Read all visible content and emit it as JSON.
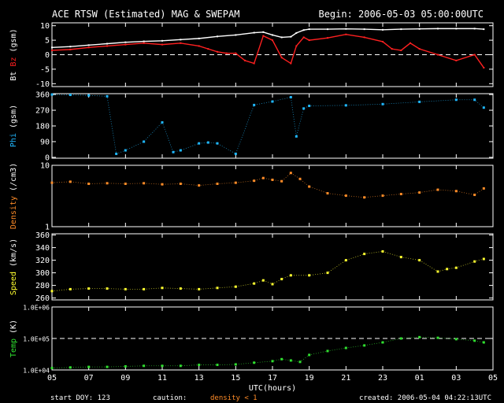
{
  "header": {
    "title": "ACE RTSW (Estimated) MAG & SWEPAM",
    "begin": "Begin: 2006-05-03 05:00:00UTC"
  },
  "footer": {
    "start_doy": "start DOY: 123",
    "caution": "caution:",
    "density_note": "density < 1",
    "created": "created: 2006-05-04 04:22:13UTC"
  },
  "colors": {
    "bt": "#ffffff",
    "bz": "#ff2020",
    "phi": "#20b8ff",
    "density": "#ff8c28",
    "speed": "#ffff30",
    "temp": "#30e030",
    "frame": "#ffffff",
    "bg": "#000000"
  },
  "chart_data": [
    {
      "type": "line",
      "panel": "mag",
      "ylabel_parts": [
        [
          "Bt",
          "#ffffff"
        ],
        [
          " ",
          "#ffffff"
        ],
        [
          "Bz",
          "#ff2020"
        ],
        [
          " (gsm)",
          "#ffffff"
        ]
      ],
      "ylim": [
        -11,
        11
      ],
      "yticks": [
        10,
        5,
        0,
        -5,
        -10
      ],
      "yticklabels": [
        "10",
        "5",
        "0",
        "-5",
        "-10"
      ],
      "dashed_ref": 0,
      "series": [
        {
          "name": "Bt",
          "color": "#ffffff",
          "x": [
            0,
            1,
            2,
            3,
            4,
            5,
            6,
            7,
            8,
            9,
            10,
            11,
            11.5,
            12,
            12.5,
            13,
            13.3,
            13.7,
            14,
            15,
            16,
            17,
            18,
            19,
            20,
            21,
            22,
            23,
            23.5
          ],
          "values": [
            2.5,
            2.8,
            3.3,
            3.8,
            4.3,
            4.6,
            4.8,
            5.2,
            5.6,
            6.3,
            6.8,
            7.6,
            7.8,
            6.8,
            6,
            6.2,
            7.5,
            8.5,
            8.8,
            8.8,
            8.9,
            8.8,
            8.6,
            8.8,
            8.9,
            9,
            9,
            9,
            8.8
          ]
        },
        {
          "name": "Bz",
          "color": "#ff2020",
          "x": [
            0,
            1,
            2,
            3,
            4,
            5,
            6,
            7,
            8,
            8.5,
            9,
            9.5,
            10,
            10.5,
            11,
            11.5,
            12,
            12.5,
            13,
            13.3,
            13.7,
            14,
            15,
            16,
            17,
            18,
            18.5,
            19,
            19.5,
            20,
            21,
            22,
            23,
            23.5
          ],
          "values": [
            1.5,
            1.8,
            2.5,
            3,
            3.5,
            4,
            3.5,
            4,
            3,
            2,
            1,
            0.5,
            0.5,
            -2,
            -3,
            6.5,
            5,
            -1,
            -3,
            3,
            6,
            5,
            5.8,
            7,
            6,
            4.5,
            2,
            1.5,
            4,
            2,
            0,
            -2,
            0,
            -4.5
          ]
        }
      ]
    },
    {
      "type": "scatter",
      "panel": "phi",
      "ylabel_parts": [
        [
          "Phi",
          "#20b8ff"
        ],
        [
          " (gsm)",
          "#ffffff"
        ]
      ],
      "ylim": [
        -5,
        365
      ],
      "yticks": [
        360,
        270,
        180,
        90,
        0
      ],
      "yticklabels": [
        "360",
        "270",
        "180",
        "90",
        "0"
      ],
      "series": [
        {
          "name": "Phi",
          "color": "#20b8ff",
          "x": [
            0,
            1,
            2,
            3,
            3.5,
            4,
            5,
            6,
            6.6,
            7,
            8,
            8.5,
            9,
            10,
            11,
            12,
            13,
            13.3,
            13.7,
            14,
            16,
            18,
            20,
            22,
            23,
            23.5
          ],
          "values": [
            360,
            358,
            355,
            350,
            20,
            40,
            90,
            200,
            30,
            40,
            80,
            85,
            80,
            20,
            300,
            320,
            345,
            120,
            280,
            295,
            298,
            305,
            318,
            330,
            330,
            285
          ]
        }
      ]
    },
    {
      "type": "scatter",
      "panel": "density",
      "ylabel_parts": [
        [
          "Density",
          "#ff8c28"
        ],
        [
          " (/cm3)",
          "#ffffff"
        ]
      ],
      "log": true,
      "ylim": [
        1,
        10
      ],
      "yticks": [
        10,
        1
      ],
      "yticklabels": [
        "10",
        "1"
      ],
      "series": [
        {
          "name": "Density",
          "color": "#ff8c28",
          "x": [
            0,
            1,
            2,
            3,
            4,
            5,
            6,
            7,
            8,
            9,
            10,
            11,
            11.5,
            12,
            12.5,
            13,
            13.5,
            14,
            15,
            16,
            17,
            18,
            19,
            20,
            21,
            22,
            23,
            23.5
          ],
          "values": [
            5.2,
            5.4,
            5.0,
            5.1,
            5.0,
            5.1,
            4.9,
            5.0,
            4.7,
            5.0,
            5.2,
            5.6,
            6.2,
            5.8,
            5.5,
            7.5,
            6,
            4.5,
            3.5,
            3.2,
            3.0,
            3.2,
            3.4,
            3.6,
            4.0,
            3.8,
            3.3,
            4.2
          ]
        }
      ]
    },
    {
      "type": "scatter",
      "panel": "speed",
      "ylabel_parts": [
        [
          "Speed",
          "#ffff30"
        ],
        [
          " (km/s)",
          "#ffffff"
        ]
      ],
      "ylim": [
        257,
        362
      ],
      "yticks": [
        360,
        340,
        320,
        300,
        280,
        260
      ],
      "yticklabels": [
        "360",
        "340",
        "320",
        "300",
        "280",
        "260"
      ],
      "series": [
        {
          "name": "Speed",
          "color": "#ffff30",
          "x": [
            0,
            1,
            2,
            3,
            4,
            5,
            6,
            7,
            8,
            9,
            10,
            11,
            11.5,
            12,
            12.5,
            13,
            14,
            15,
            16,
            17,
            18,
            19,
            20,
            21,
            21.5,
            22,
            23,
            23.5
          ],
          "values": [
            271,
            274,
            275,
            275,
            274,
            274,
            276,
            275,
            274,
            276,
            278,
            283,
            288,
            282,
            290,
            296,
            296,
            300,
            320,
            330,
            334,
            325,
            320,
            302,
            306,
            308,
            318,
            322
          ]
        }
      ]
    },
    {
      "type": "scatter",
      "panel": "temp",
      "ylabel_parts": [
        [
          "Temp",
          "#30e030"
        ],
        [
          " (K)",
          "#ffffff"
        ]
      ],
      "log": true,
      "ylim": [
        10000,
        1000000
      ],
      "yticks": [
        1000000,
        100000,
        10000
      ],
      "yticklabels": [
        "1.0E+06",
        "1.0E+05",
        "1.0E+04"
      ],
      "dashed_ref": 100000,
      "xticklabels": [
        "05",
        "07",
        "09",
        "11",
        "13",
        "15",
        "17",
        "19",
        "21",
        "23",
        "01",
        "03",
        "05"
      ],
      "xlabel": "UTC(hours)",
      "series": [
        {
          "name": "Temp",
          "color": "#30e030",
          "x": [
            0,
            1,
            2,
            3,
            4,
            5,
            6,
            7,
            8,
            9,
            10,
            11,
            12,
            12.5,
            13,
            13.5,
            14,
            15,
            16,
            17,
            18,
            19,
            20,
            21,
            22,
            23,
            23.5
          ],
          "values": [
            11500,
            12000,
            12500,
            12500,
            13000,
            13500,
            13500,
            13500,
            14500,
            14500,
            15000,
            17000,
            19000,
            22000,
            20000,
            18000,
            30000,
            40000,
            50000,
            60000,
            75000,
            100000,
            110000,
            105000,
            95000,
            85000,
            75000
          ]
        }
      ]
    }
  ]
}
